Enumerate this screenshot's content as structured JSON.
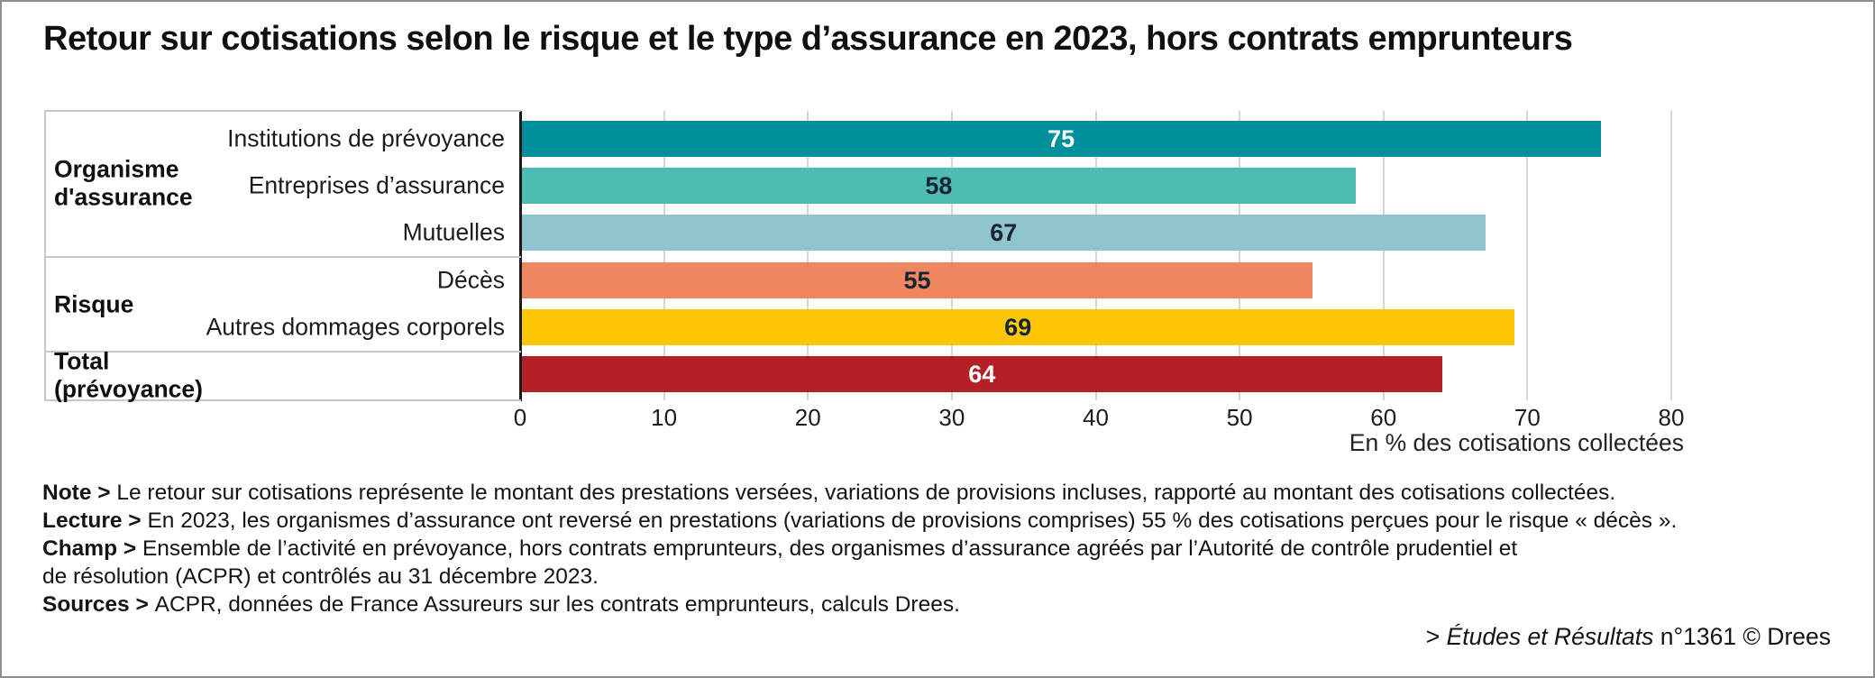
{
  "chart_data": {
    "type": "bar",
    "orientation": "horizontal",
    "title": "Retour sur cotisations selon le risque et le type d’assurance en 2023, hors contrats emprunteurs",
    "xlabel": "En % des cotisations collectées",
    "xlim": [
      0,
      80
    ],
    "xticks": [
      0,
      10,
      20,
      30,
      40,
      50,
      60,
      70,
      80
    ],
    "grid": true,
    "categories": [
      "Institutions de prévoyance",
      "Entreprises d’assurance",
      "Mutuelles",
      "Décès",
      "Autres dommages corporels",
      "Total (prévoyance)"
    ],
    "values": [
      75,
      58,
      67,
      55,
      69,
      64
    ],
    "groups": [
      {
        "label": "Organisme d'assurance",
        "label_lines": [
          "Organisme",
          "d'assurance"
        ],
        "rows": [
          {
            "category": "Institutions de prévoyance",
            "value": 75,
            "color": "#00909b",
            "value_color": "#ffffff"
          },
          {
            "category": "Entreprises d’assurance",
            "value": 58,
            "color": "#4ebbb3",
            "value_color": "#172433"
          },
          {
            "category": "Mutuelles",
            "value": 67,
            "color": "#90c4cd",
            "value_color": "#172433"
          }
        ]
      },
      {
        "label": "Risque",
        "label_lines": [
          "Risque"
        ],
        "rows": [
          {
            "category": "Décès",
            "value": 55,
            "color": "#ef8561",
            "value_color": "#172433"
          },
          {
            "category": "Autres dommages corporels",
            "value": 69,
            "color": "#fdc704",
            "value_color": "#172433"
          }
        ]
      },
      {
        "label": "Total (prévoyance)",
        "label_lines": [
          "Total",
          "(prévoyance)"
        ],
        "rows": [
          {
            "category": "",
            "value": 64,
            "color": "#b32126",
            "value_color": "#ffffff"
          }
        ]
      }
    ]
  },
  "notes": [
    {
      "label": "Note >",
      "text": "Le retour sur cotisations représente le montant des prestations versées, variations de provisions incluses, rapporté au montant des cotisations collectées."
    },
    {
      "label": "Lecture >",
      "text": "En 2023, les organismes d’assurance ont reversé en prestations (variations de provisions comprises) 55 % des cotisations perçues pour le risque « décès »."
    },
    {
      "label": "Champ >",
      "text": "Ensemble de l’activité en prévoyance, hors contrats emprunteurs, des organismes d’assurance agréés par l’Autorité de contrôle prudentiel et"
    },
    {
      "label": "",
      "text": "de résolution (ACPR) et contrôlés au 31 décembre 2023."
    },
    {
      "label": "Sources >",
      "text": "ACPR, données de France Assureurs sur les contrats emprunteurs, calculs Drees."
    }
  ],
  "credit": {
    "prefix": "> ",
    "journal": "Études et Résultats",
    "suffix": " n°1361 © Drees"
  }
}
